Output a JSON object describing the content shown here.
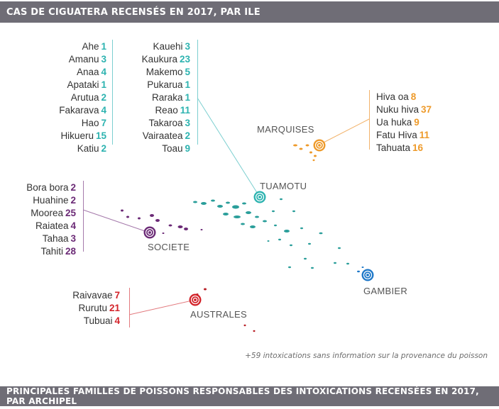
{
  "header": {
    "title": "CAS DE CIGUATERA RECENSÉS EN 2017, PAR ILE"
  },
  "footer": {
    "title": "PRINCIPALES FAMILLES DE POISSONS RESPONSABLES DES INTOXICATIONS RECENSÉES EN 2017, PAR ARCHIPEL"
  },
  "note": "+59 intoxications sans information sur la provenance du poisson",
  "colors": {
    "tuamotu": "#2db3b0",
    "marquises": "#ee9a2a",
    "societe": "#6b2a76",
    "australes": "#d3232a",
    "gambier": "#1f78c8"
  },
  "archipelagos": {
    "tuamotu": {
      "name": "TUAMOTU",
      "islands_col1": [
        {
          "name": "Ahe",
          "value": "1"
        },
        {
          "name": "Amanu",
          "value": "3"
        },
        {
          "name": "Anaa",
          "value": "4"
        },
        {
          "name": "Apataki",
          "value": "1"
        },
        {
          "name": "Arutua",
          "value": "2"
        },
        {
          "name": "Fakarava",
          "value": "4"
        },
        {
          "name": "Hao",
          "value": "7"
        },
        {
          "name": "Hikueru",
          "value": "15"
        },
        {
          "name": "Katiu",
          "value": "2"
        }
      ],
      "islands_col2": [
        {
          "name": "Kauehi",
          "value": "3"
        },
        {
          "name": "Kaukura",
          "value": "23"
        },
        {
          "name": "Makemo",
          "value": "5"
        },
        {
          "name": "Pukarua",
          "value": "1"
        },
        {
          "name": "Raraka",
          "value": "1"
        },
        {
          "name": "Reao",
          "value": "11"
        },
        {
          "name": "Takaroa",
          "value": "3"
        },
        {
          "name": "Vairaatea",
          "value": "2"
        },
        {
          "name": "Toau",
          "value": "9"
        }
      ]
    },
    "marquises": {
      "name": "MARQUISES",
      "islands": [
        {
          "name": "Hiva oa",
          "value": "8"
        },
        {
          "name": "Nuku hiva",
          "value": "37"
        },
        {
          "name": "Ua huka",
          "value": "9"
        },
        {
          "name": "Fatu Hiva",
          "value": "11"
        },
        {
          "name": "Tahuata",
          "value": "16"
        }
      ]
    },
    "societe": {
      "name": "SOCIETE",
      "islands": [
        {
          "name": "Bora bora",
          "value": "2"
        },
        {
          "name": "Huahine",
          "value": "2"
        },
        {
          "name": "Moorea",
          "value": "25"
        },
        {
          "name": "Raiatea",
          "value": "4"
        },
        {
          "name": "Tahaa",
          "value": "3"
        },
        {
          "name": "Tahiti",
          "value": "28"
        }
      ]
    },
    "australes": {
      "name": "AUSTRALES",
      "islands": [
        {
          "name": "Raivavae",
          "value": "7"
        },
        {
          "name": "Rurutu",
          "value": "21"
        },
        {
          "name": "Tubuai",
          "value": "4"
        }
      ]
    },
    "gambier": {
      "name": "GAMBIER"
    }
  }
}
